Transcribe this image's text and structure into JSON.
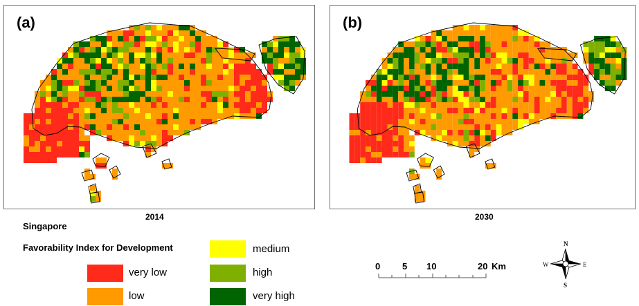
{
  "maps": [
    {
      "label": "(a)",
      "year": "2014",
      "seed": 7
    },
    {
      "label": "(b)",
      "year": "2030",
      "seed": 19
    }
  ],
  "country": "Singapore",
  "legend": {
    "title": "Favorability Index for Development",
    "items": [
      {
        "label": "very low",
        "color": "#ff2a1a"
      },
      {
        "label": "low",
        "color": "#ff9a00"
      },
      {
        "label": "medium",
        "color": "#ffff00"
      },
      {
        "label": "high",
        "color": "#7fb000"
      },
      {
        "label": "very high",
        "color": "#006400"
      }
    ]
  },
  "scalebar": {
    "ticks": [
      "0",
      "5",
      "10",
      "20"
    ],
    "unit": "Km"
  },
  "north_arrow": {
    "n": "N",
    "s": "S",
    "e": "E",
    "w": "W"
  }
}
